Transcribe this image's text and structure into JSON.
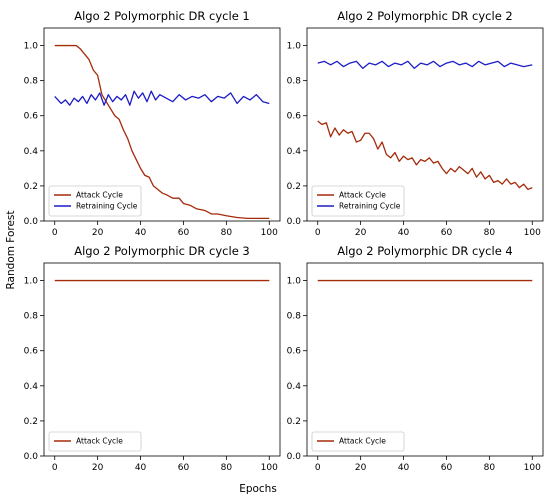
{
  "figure": {
    "ylabel": "Random Forest",
    "xlabel": "Epochs"
  },
  "chart_data": [
    {
      "type": "line",
      "title": "Algo 2 Polymorphic DR cycle 1",
      "xlim": [
        0,
        100
      ],
      "ylim": [
        0,
        1.1
      ],
      "xticks": [
        0,
        20,
        40,
        60,
        80,
        100
      ],
      "yticks": [
        0.0,
        0.2,
        0.4,
        0.6,
        0.8,
        1.0
      ],
      "legend_position": "lower-left",
      "series": [
        {
          "name": "Attack Cycle",
          "color": "#a52a0a",
          "x": [
            0,
            5,
            10,
            12,
            14,
            16,
            18,
            20,
            22,
            24,
            26,
            28,
            30,
            32,
            34,
            36,
            38,
            40,
            42,
            44,
            46,
            48,
            50,
            52,
            55,
            58,
            60,
            63,
            66,
            70,
            73,
            76,
            80,
            85,
            90,
            95,
            100
          ],
          "y": [
            1.0,
            1.0,
            1.0,
            0.98,
            0.95,
            0.92,
            0.86,
            0.83,
            0.72,
            0.68,
            0.64,
            0.6,
            0.58,
            0.52,
            0.47,
            0.4,
            0.35,
            0.3,
            0.26,
            0.25,
            0.2,
            0.18,
            0.16,
            0.15,
            0.13,
            0.13,
            0.1,
            0.09,
            0.07,
            0.06,
            0.04,
            0.04,
            0.03,
            0.02,
            0.015,
            0.015,
            0.015
          ]
        },
        {
          "name": "Retraining Cycle",
          "color": "#1c1cc8",
          "x": [
            0,
            3,
            5,
            7,
            9,
            11,
            13,
            15,
            17,
            19,
            21,
            23,
            25,
            27,
            29,
            31,
            33,
            35,
            37,
            39,
            41,
            43,
            45,
            47,
            49,
            52,
            55,
            58,
            61,
            64,
            67,
            70,
            73,
            76,
            79,
            82,
            85,
            88,
            91,
            94,
            97,
            100
          ],
          "y": [
            0.71,
            0.67,
            0.69,
            0.66,
            0.7,
            0.68,
            0.71,
            0.67,
            0.72,
            0.69,
            0.73,
            0.66,
            0.72,
            0.68,
            0.71,
            0.69,
            0.72,
            0.66,
            0.74,
            0.7,
            0.73,
            0.68,
            0.74,
            0.69,
            0.72,
            0.7,
            0.68,
            0.72,
            0.69,
            0.71,
            0.7,
            0.72,
            0.68,
            0.71,
            0.7,
            0.73,
            0.67,
            0.71,
            0.69,
            0.72,
            0.68,
            0.67
          ]
        }
      ]
    },
    {
      "type": "line",
      "title": "Algo 2 Polymorphic DR cycle 2",
      "xlim": [
        0,
        100
      ],
      "ylim": [
        0,
        1.1
      ],
      "xticks": [
        0,
        20,
        40,
        60,
        80,
        100
      ],
      "yticks": [
        0.0,
        0.2,
        0.4,
        0.6,
        0.8,
        1.0
      ],
      "legend_position": "lower-left",
      "series": [
        {
          "name": "Attack Cycle",
          "color": "#a52a0a",
          "x": [
            0,
            2,
            4,
            6,
            8,
            10,
            12,
            14,
            16,
            18,
            20,
            22,
            24,
            26,
            28,
            30,
            32,
            34,
            36,
            38,
            40,
            42,
            44,
            46,
            48,
            50,
            52,
            54,
            56,
            58,
            60,
            62,
            64,
            66,
            68,
            70,
            72,
            74,
            76,
            78,
            80,
            82,
            84,
            86,
            88,
            90,
            92,
            94,
            96,
            98,
            100
          ],
          "y": [
            0.57,
            0.55,
            0.56,
            0.48,
            0.53,
            0.49,
            0.52,
            0.5,
            0.51,
            0.45,
            0.46,
            0.5,
            0.5,
            0.47,
            0.41,
            0.45,
            0.38,
            0.36,
            0.39,
            0.34,
            0.37,
            0.35,
            0.36,
            0.32,
            0.35,
            0.34,
            0.36,
            0.33,
            0.34,
            0.3,
            0.27,
            0.3,
            0.28,
            0.31,
            0.29,
            0.27,
            0.3,
            0.25,
            0.28,
            0.24,
            0.26,
            0.22,
            0.23,
            0.21,
            0.24,
            0.21,
            0.22,
            0.19,
            0.21,
            0.18,
            0.19
          ]
        },
        {
          "name": "Retraining Cycle",
          "color": "#1c1cc8",
          "x": [
            0,
            3,
            6,
            9,
            12,
            15,
            18,
            21,
            24,
            27,
            30,
            33,
            36,
            39,
            42,
            45,
            48,
            51,
            54,
            57,
            60,
            63,
            66,
            69,
            72,
            75,
            78,
            81,
            84,
            87,
            90,
            93,
            96,
            100
          ],
          "y": [
            0.9,
            0.91,
            0.89,
            0.91,
            0.88,
            0.9,
            0.91,
            0.87,
            0.9,
            0.89,
            0.91,
            0.88,
            0.9,
            0.89,
            0.91,
            0.87,
            0.9,
            0.89,
            0.91,
            0.88,
            0.9,
            0.91,
            0.89,
            0.9,
            0.88,
            0.91,
            0.89,
            0.9,
            0.91,
            0.88,
            0.9,
            0.89,
            0.88,
            0.89
          ]
        }
      ]
    },
    {
      "type": "line",
      "title": "Algo 2 Polymorphic DR cycle 3",
      "xlim": [
        0,
        100
      ],
      "ylim": [
        0,
        1.1
      ],
      "xticks": [
        0,
        20,
        40,
        60,
        80,
        100
      ],
      "yticks": [
        0.0,
        0.2,
        0.4,
        0.6,
        0.8,
        1.0
      ],
      "legend_position": "lower-left",
      "series": [
        {
          "name": "Attack Cycle",
          "color": "#a52a0a",
          "x": [
            0,
            100
          ],
          "y": [
            1.0,
            1.0
          ]
        }
      ]
    },
    {
      "type": "line",
      "title": "Algo 2 Polymorphic DR cycle 4",
      "xlim": [
        0,
        100
      ],
      "ylim": [
        0,
        1.1
      ],
      "xticks": [
        0,
        20,
        40,
        60,
        80,
        100
      ],
      "yticks": [
        0.0,
        0.2,
        0.4,
        0.6,
        0.8,
        1.0
      ],
      "legend_position": "lower-left",
      "series": [
        {
          "name": "Attack Cycle",
          "color": "#a52a0a",
          "x": [
            0,
            100
          ],
          "y": [
            1.0,
            1.0
          ]
        }
      ]
    }
  ]
}
